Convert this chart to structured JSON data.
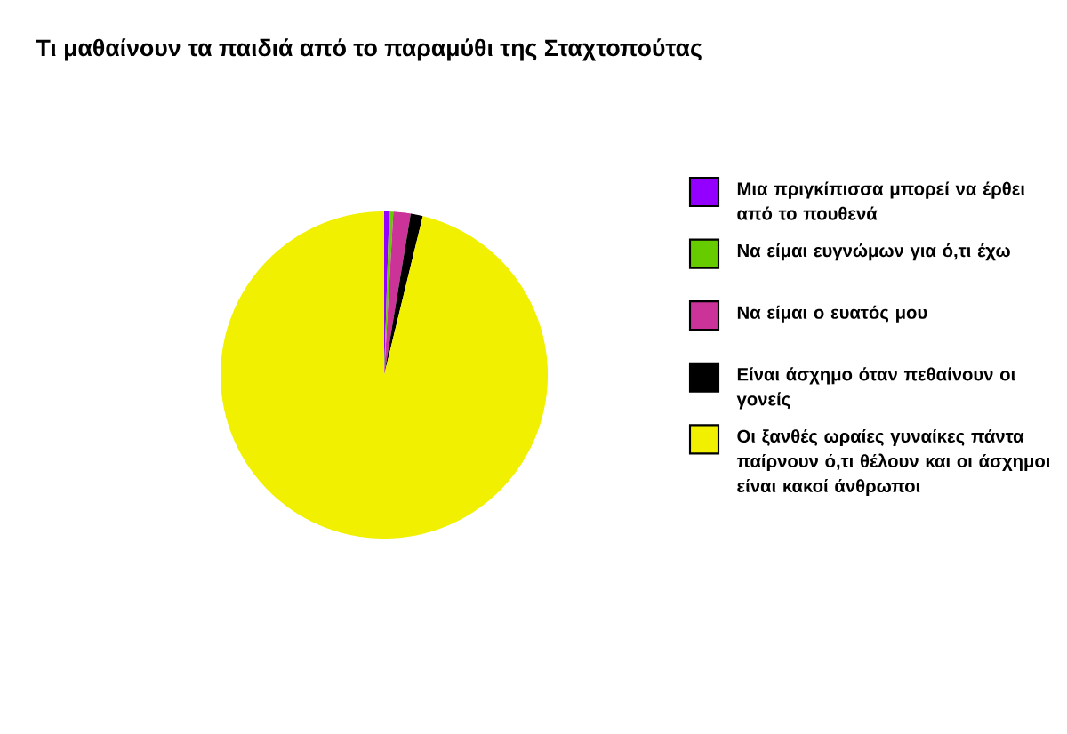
{
  "chart_data": {
    "type": "pie",
    "title": "Τι μαθαίνουν τα παιδιά από το παραμύθι της Σταχτοπούτας",
    "categories": [
      "Μια πριγκίπισσα μπορεί να έρθει από το πουθενά",
      "Να είμαι ευγνώμων για ό,τι έχω",
      "Να είμαι ο ευατός μου",
      "Είναι άσχημο όταν πεθαίνουν οι γονείς",
      "Οι ξανθές ωραίες γυναίκες πάντα παίρνουν ό,τι θέλουν και οι άσχημοι είναι κακοί άνθρωποι"
    ],
    "values": [
      0.5,
      0.4,
      1.7,
      1.2,
      96.2
    ],
    "colors": [
      "#9400ff",
      "#66cc00",
      "#cc3399",
      "#000000",
      "#f0f000"
    ],
    "legend": "right"
  }
}
